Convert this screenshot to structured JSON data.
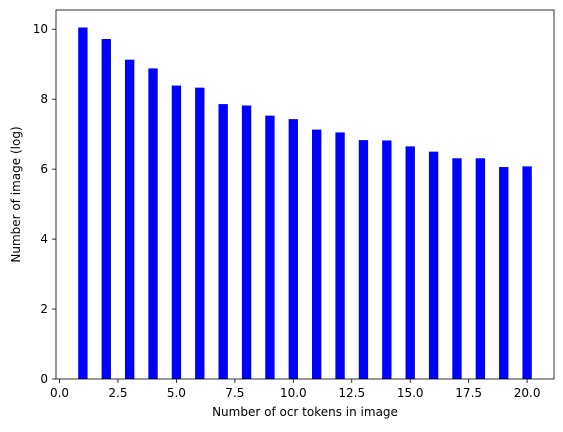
{
  "chart_data": {
    "type": "bar",
    "title": "",
    "xlabel": "Number of ocr tokens in image",
    "ylabel": "Number of image (log)",
    "x": [
      1,
      2,
      3,
      4,
      5,
      6,
      7,
      8,
      9,
      10,
      11,
      12,
      13,
      14,
      15,
      16,
      17,
      18,
      19,
      20
    ],
    "values": [
      10.05,
      9.72,
      9.13,
      8.88,
      8.39,
      8.33,
      7.86,
      7.82,
      7.53,
      7.43,
      7.13,
      7.05,
      6.83,
      6.82,
      6.65,
      6.5,
      6.31,
      6.31,
      6.06,
      6.08
    ],
    "xlim": [
      -0.15,
      21.15
    ],
    "ylim": [
      0,
      10.55
    ],
    "xticks": [
      0.0,
      2.5,
      5.0,
      7.5,
      10.0,
      12.5,
      15.0,
      17.5,
      20.0
    ],
    "xtick_labels": [
      "0.0",
      "2.5",
      "5.0",
      "7.5",
      "10.0",
      "12.5",
      "15.0",
      "17.5",
      "20.0"
    ],
    "yticks": [
      0,
      2,
      4,
      6,
      8,
      10
    ],
    "ytick_labels": [
      "0",
      "2",
      "4",
      "6",
      "8",
      "10"
    ],
    "bar_width": 0.4,
    "bar_color": "#0000ff",
    "grid": false,
    "legend": "none"
  }
}
